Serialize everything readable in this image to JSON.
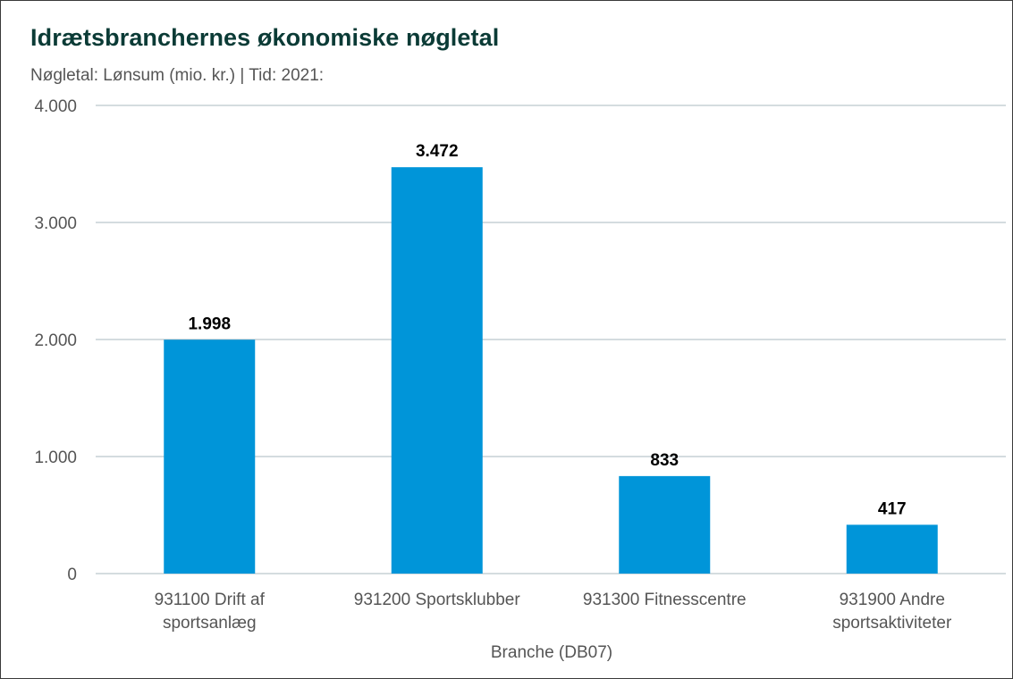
{
  "title": "Idrætsbranchernes økonomiske nøgletal",
  "subtitle": "Nøgletal: Lønsum (mio. kr.) | Tid: 2021:",
  "chart_data": {
    "type": "bar",
    "title": "Idrætsbranchernes økonomiske nøgletal",
    "subtitle": "Nøgletal: Lønsum (mio. kr.) | Tid: 2021:",
    "categories": [
      [
        "931100 Drift af",
        "sportsanlæg"
      ],
      [
        "931200 Sportsklubber"
      ],
      [
        "931300 Fitnesscentre"
      ],
      [
        "931900 Andre",
        "sportsaktiviteter"
      ]
    ],
    "values": [
      1998,
      3472,
      833,
      417
    ],
    "value_labels": [
      "1.998",
      "3.472",
      "833",
      "417"
    ],
    "xlabel": "Branche (DB07)",
    "ylabel": "",
    "ylim": [
      0,
      4000
    ],
    "yticks": [
      0,
      1000,
      2000,
      3000,
      4000
    ],
    "ytick_labels": [
      "0",
      "1.000",
      "2.000",
      "3.000",
      "4.000"
    ],
    "grid": true,
    "legend": "none",
    "bar_color": "#0095d9",
    "grid_color": "#a9b9bf",
    "label_color": "#000000",
    "axis_text_color": "#555555"
  }
}
